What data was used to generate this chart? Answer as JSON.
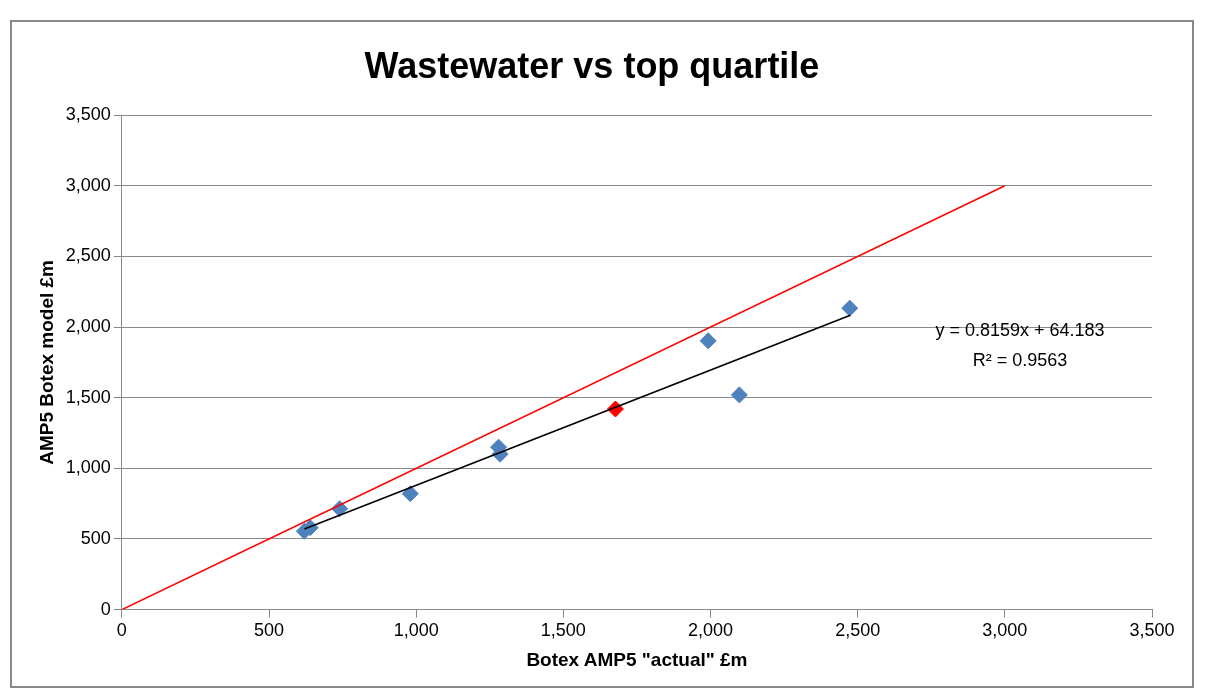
{
  "chart_data": {
    "type": "scatter",
    "title": "Wastewater vs top quartile",
    "xlabel": "Botex AMP5 \"actual\" £m",
    "ylabel": "AMP5 Botex model £m",
    "series": [
      {
        "type": "scatter",
        "x": [
          620,
          640,
          740,
          980,
          1280,
          1285,
          1677,
          1992,
          2098,
          2473
        ],
        "values": [
          555,
          580,
          714,
          821,
          1150,
          1100,
          1420,
          1903,
          1520,
          2134
        ],
        "colors": [
          "#4f81bd",
          "#4f81bd",
          "#4f81bd",
          "#4f81bd",
          "#4f81bd",
          "#4f81bd",
          "#ff0000",
          "#4f81bd",
          "#4f81bd",
          "#4f81bd"
        ],
        "marker": "diamond"
      },
      {
        "type": "line",
        "x": [
          620,
          2475
        ],
        "values": [
          570,
          2083
        ],
        "color": "#000000",
        "marker": "none"
      },
      {
        "type": "line",
        "x": [
          0,
          3000
        ],
        "values": [
          0,
          3000
        ],
        "color": "#ff0000",
        "marker": "none"
      }
    ],
    "xlim": [
      0,
      3500
    ],
    "xticks": [
      {
        "value": 0,
        "label": "0"
      },
      {
        "value": 500,
        "label": "500"
      },
      {
        "value": 1000,
        "label": "1,000"
      },
      {
        "value": 1500,
        "label": "1,500"
      },
      {
        "value": 2000,
        "label": "2,000"
      },
      {
        "value": 2500,
        "label": "2,500"
      },
      {
        "value": 3000,
        "label": "3,000"
      },
      {
        "value": 3500,
        "label": "3,500"
      }
    ],
    "ylim": [
      0,
      3500
    ],
    "yticks": [
      {
        "value": 0,
        "label": "0"
      },
      {
        "value": 500,
        "label": "500"
      },
      {
        "value": 1000,
        "label": "1,000"
      },
      {
        "value": 1500,
        "label": "1,500"
      },
      {
        "value": 2000,
        "label": "2,000"
      },
      {
        "value": 2500,
        "label": "2,500"
      },
      {
        "value": 3000,
        "label": "3,000"
      },
      {
        "value": 3500,
        "label": "3,500"
      }
    ],
    "grid": "y",
    "legend": false,
    "annotations": [
      "y = 0.8159x + 64.183",
      "R² = 0.9563"
    ]
  }
}
